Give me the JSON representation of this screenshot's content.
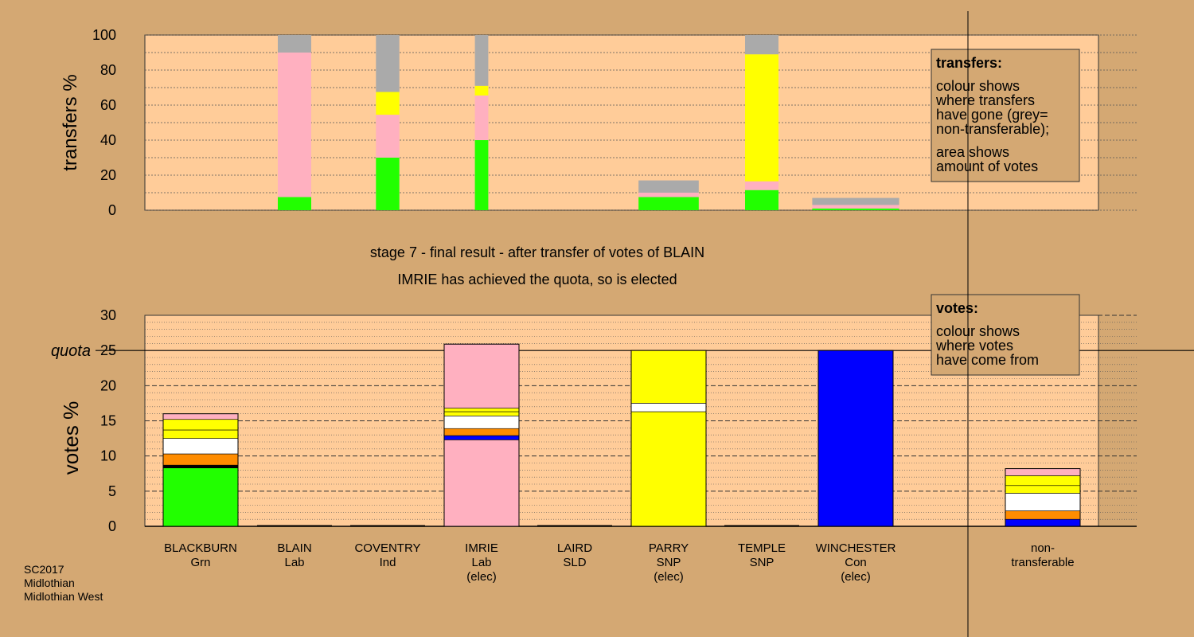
{
  "colors": {
    "background": "#d4a873",
    "plot_bg": "#ffcc99",
    "legend_bg": "#d4a873",
    "source_palette": {
      "Grn": "#22ff00",
      "Lab": "#ffb0c0",
      "SNP": "#ffff00",
      "Con": "#0000ff",
      "SLD": "#ff8c00",
      "Ind": "#ffffff",
      "nontransferable": "#aaaaaa",
      "separator": "#000000"
    }
  },
  "chart_data": [
    {
      "type": "bar",
      "stacked": true,
      "panel": "transfers",
      "ylabel": "transfers %",
      "ylim": [
        0,
        100
      ],
      "yticks": [
        0,
        20,
        40,
        60,
        80,
        100
      ],
      "grid": true,
      "legend": {
        "placement": "top-right",
        "title": "transfers:",
        "lines": [
          "colour shows",
          "where transfers",
          "have gone (grey=",
          "non-transferable);",
          "area shows",
          "amount of votes"
        ]
      },
      "categories": [
        "BLACKBURN",
        "BLAIN",
        "COVENTRY",
        "IMRIE",
        "LAIRD",
        "PARRY",
        "TEMPLE",
        "WINCHESTER"
      ],
      "columns": [
        {
          "candidate": "BLAIN",
          "width_weight": 1.0,
          "stack": [
            {
              "color": "Grn",
              "value": 7.5
            },
            {
              "color": "Lab",
              "value": 82.5
            },
            {
              "color": "nontransferable",
              "value": 10
            }
          ]
        },
        {
          "candidate": "COVENTRY",
          "width_weight": 0.7,
          "stack": [
            {
              "color": "Grn",
              "value": 30
            },
            {
              "color": "Lab",
              "value": 24.5
            },
            {
              "color": "SNP",
              "value": 13
            },
            {
              "color": "nontransferable",
              "value": 32.5
            }
          ]
        },
        {
          "candidate": "IMRIE",
          "width_weight": 0.4,
          "stack": [
            {
              "color": "Grn",
              "value": 40
            },
            {
              "color": "Lab",
              "value": 25.5
            },
            {
              "color": "SNP",
              "value": 5.5
            },
            {
              "color": "nontransferable",
              "value": 29
            }
          ]
        },
        {
          "candidate": "PARRY",
          "width_weight": 1.8,
          "stack": [
            {
              "color": "Grn",
              "value": 7.5
            },
            {
              "color": "Lab",
              "value": 2.5
            },
            {
              "color": "nontransferable",
              "value": 7
            }
          ]
        },
        {
          "candidate": "TEMPLE",
          "width_weight": 1.0,
          "stack": [
            {
              "color": "Grn",
              "value": 11.5
            },
            {
              "color": "Lab",
              "value": 5
            },
            {
              "color": "SNP",
              "value": 72.5
            },
            {
              "color": "nontransferable",
              "value": 11
            }
          ]
        },
        {
          "candidate": "WINCHESTER",
          "width_weight": 2.6,
          "stack": [
            {
              "color": "Grn",
              "value": 1
            },
            {
              "color": "Lab",
              "value": 2
            },
            {
              "color": "nontransferable",
              "value": 4
            }
          ]
        }
      ]
    },
    {
      "type": "bar",
      "stacked": true,
      "panel": "votes",
      "ylabel": "votes %",
      "ylim": [
        0,
        30
      ],
      "yticks": [
        0,
        5,
        10,
        15,
        20,
        25,
        30
      ],
      "quota": {
        "label": "quota",
        "value": 25
      },
      "grid": true,
      "legend": {
        "placement": "top-right",
        "title": "votes:",
        "lines": [
          "colour shows",
          "where votes",
          "have come from"
        ]
      },
      "categories": [
        {
          "name": "BLACKBURN",
          "party": "Grn",
          "note": ""
        },
        {
          "name": "BLAIN",
          "party": "Lab",
          "note": ""
        },
        {
          "name": "COVENTRY",
          "party": "Ind",
          "note": ""
        },
        {
          "name": "IMRIE",
          "party": "Lab",
          "note": "(elec)"
        },
        {
          "name": "LAIRD",
          "party": "SLD",
          "note": ""
        },
        {
          "name": "PARRY",
          "party": "SNP",
          "note": "(elec)"
        },
        {
          "name": "TEMPLE",
          "party": "SNP",
          "note": ""
        },
        {
          "name": "WINCHESTER",
          "party": "Con",
          "note": "(elec)"
        },
        {
          "name": "non-",
          "party": "transferable",
          "note": ""
        }
      ],
      "bars": [
        {
          "candidate": "BLACKBURN",
          "stack": [
            {
              "color": "Grn",
              "value": 8.3
            },
            {
              "color": "separator",
              "value": 0.4
            },
            {
              "color": "SLD",
              "value": 1.6
            },
            {
              "color": "Ind",
              "value": 2.2
            },
            {
              "color": "SNP",
              "value": 1.2
            },
            {
              "color": "SNP",
              "value": 1.5
            },
            {
              "color": "Lab",
              "value": 0.8
            }
          ]
        },
        {
          "candidate": "BLAIN",
          "stack": []
        },
        {
          "candidate": "COVENTRY",
          "stack": []
        },
        {
          "candidate": "IMRIE",
          "stack": [
            {
              "color": "Lab",
              "value": 12.3
            },
            {
              "color": "Con",
              "value": 0.6
            },
            {
              "color": "SLD",
              "value": 1.0
            },
            {
              "color": "Ind",
              "value": 1.8
            },
            {
              "color": "SNP",
              "value": 0.6
            },
            {
              "color": "SNP",
              "value": 0.5
            },
            {
              "color": "Lab",
              "value": 9.1
            }
          ]
        },
        {
          "candidate": "LAIRD",
          "stack": []
        },
        {
          "candidate": "PARRY",
          "stack": [
            {
              "color": "SNP",
              "value": 16.3
            },
            {
              "color": "Ind",
              "value": 1.2
            },
            {
              "color": "SNP",
              "value": 7.5
            }
          ]
        },
        {
          "candidate": "TEMPLE",
          "stack": []
        },
        {
          "candidate": "WINCHESTER",
          "stack": [
            {
              "color": "Con",
              "value": 25.0
            }
          ]
        },
        {
          "candidate": "non-transferable",
          "stack": [
            {
              "color": "Con",
              "value": 1.0
            },
            {
              "color": "SLD",
              "value": 1.2
            },
            {
              "color": "Ind",
              "value": 2.5
            },
            {
              "color": "SNP",
              "value": 1.1
            },
            {
              "color": "SNP",
              "value": 1.4
            },
            {
              "color": "Lab",
              "value": 1.0
            }
          ]
        }
      ]
    }
  ],
  "stage_title": "stage 7 - final result - after transfer of votes of BLAIN",
  "stage_subtitle": "IMRIE has achieved the quota, so is elected",
  "footer": {
    "line1": "SC2017",
    "line2": "Midlothian",
    "line3": "Midlothian West"
  }
}
